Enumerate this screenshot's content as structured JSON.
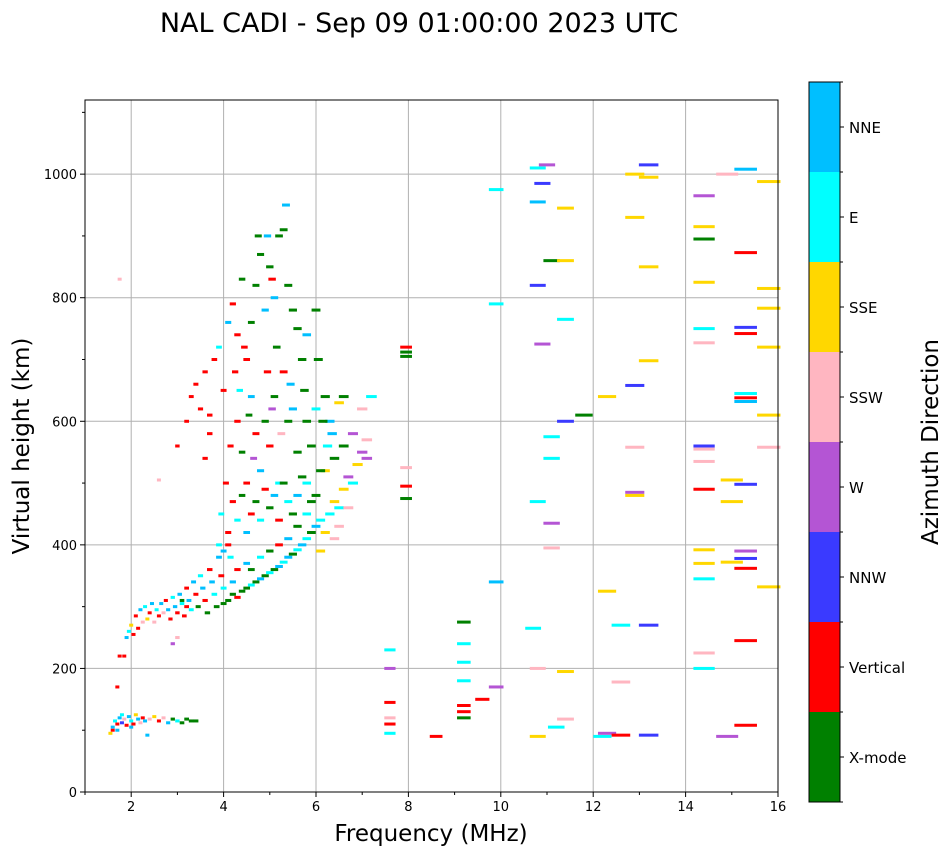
{
  "chart_data": {
    "type": "scatter",
    "title": "NAL CADI - Sep 09 01:00:00 2023 UTC",
    "xlabel": "Frequency (MHz)",
    "ylabel": "Virtual height (km)",
    "xlim": [
      1,
      16
    ],
    "ylim": [
      0,
      1120
    ],
    "xticks": [
      2,
      4,
      6,
      8,
      10,
      12,
      14,
      16
    ],
    "yticks": [
      0,
      200,
      400,
      600,
      800,
      1000
    ],
    "grid": true,
    "colorbar": {
      "label": "Azimuth Direction",
      "categories": [
        "X-mode",
        "Vertical",
        "NNW",
        "W",
        "SSW",
        "SSE",
        "E",
        "NNE"
      ],
      "colors": [
        "#008000",
        "#ff0000",
        "#3a3aff",
        "#b455d4",
        "#ffb6c1",
        "#ffd700",
        "#00ffff",
        "#00bfff"
      ]
    },
    "point_format": [
      "frequency_mhz",
      "virtual_height_km",
      "azimuth_index"
    ],
    "points": [
      [
        1.55,
        95,
        5
      ],
      [
        1.6,
        105,
        7
      ],
      [
        1.65,
        115,
        6
      ],
      [
        1.7,
        110,
        1
      ],
      [
        1.75,
        120,
        7
      ],
      [
        1.8,
        112,
        2
      ],
      [
        1.85,
        118,
        4
      ],
      [
        1.9,
        108,
        1
      ],
      [
        1.95,
        122,
        7
      ],
      [
        2.0,
        115,
        6
      ],
      [
        2.05,
        110,
        1
      ],
      [
        2.1,
        125,
        5
      ],
      [
        2.15,
        118,
        7
      ],
      [
        2.2,
        112,
        4
      ],
      [
        2.25,
        120,
        1
      ],
      [
        2.3,
        115,
        7
      ],
      [
        2.35,
        92,
        7
      ],
      [
        2.4,
        118,
        4
      ],
      [
        2.5,
        122,
        5
      ],
      [
        2.6,
        115,
        1
      ],
      [
        2.7,
        120,
        4
      ],
      [
        2.8,
        112,
        7
      ],
      [
        2.9,
        118,
        0
      ],
      [
        3.0,
        115,
        6
      ],
      [
        3.1,
        112,
        0
      ],
      [
        3.2,
        118,
        0
      ],
      [
        3.3,
        115,
        0
      ],
      [
        3.4,
        115,
        0
      ],
      [
        1.7,
        170,
        1
      ],
      [
        1.75,
        220,
        1
      ],
      [
        1.85,
        220,
        1
      ],
      [
        1.6,
        100,
        1
      ],
      [
        1.7,
        100,
        7
      ],
      [
        1.8,
        125,
        6
      ],
      [
        2.0,
        105,
        7
      ],
      [
        1.9,
        250,
        7
      ],
      [
        1.95,
        260,
        6
      ],
      [
        2.0,
        270,
        5
      ],
      [
        2.05,
        255,
        1
      ],
      [
        2.1,
        285,
        1
      ],
      [
        2.15,
        265,
        1
      ],
      [
        2.2,
        295,
        7
      ],
      [
        2.25,
        275,
        4
      ],
      [
        2.3,
        300,
        6
      ],
      [
        2.35,
        280,
        5
      ],
      [
        2.4,
        290,
        1
      ],
      [
        2.45,
        305,
        7
      ],
      [
        2.5,
        275,
        4
      ],
      [
        2.55,
        295,
        6
      ],
      [
        2.6,
        285,
        1
      ],
      [
        2.65,
        305,
        7
      ],
      [
        2.7,
        290,
        4
      ],
      [
        2.75,
        310,
        1
      ],
      [
        2.8,
        295,
        7
      ],
      [
        2.85,
        280,
        1
      ],
      [
        2.9,
        315,
        6
      ],
      [
        2.95,
        300,
        7
      ],
      [
        3.0,
        290,
        1
      ],
      [
        3.05,
        320,
        7
      ],
      [
        3.1,
        305,
        6
      ],
      [
        3.15,
        285,
        1
      ],
      [
        3.2,
        330,
        1
      ],
      [
        3.25,
        310,
        7
      ],
      [
        3.3,
        295,
        6
      ],
      [
        3.35,
        340,
        7
      ],
      [
        3.4,
        320,
        1
      ],
      [
        3.45,
        300,
        0
      ],
      [
        3.5,
        350,
        6
      ],
      [
        3.55,
        330,
        7
      ],
      [
        3.6,
        310,
        1
      ],
      [
        3.65,
        290,
        0
      ],
      [
        3.7,
        360,
        1
      ],
      [
        3.75,
        340,
        7
      ],
      [
        3.8,
        320,
        6
      ],
      [
        3.85,
        300,
        0
      ],
      [
        3.9,
        380,
        7
      ],
      [
        3.95,
        350,
        1
      ],
      [
        4.0,
        330,
        6
      ],
      [
        4.0,
        305,
        0
      ],
      [
        2.9,
        240,
        3
      ],
      [
        3.0,
        250,
        4
      ],
      [
        2.6,
        505,
        4
      ],
      [
        1.75,
        830,
        4
      ],
      [
        3.1,
        310,
        0
      ],
      [
        3.2,
        300,
        1
      ],
      [
        4.1,
        310,
        0
      ],
      [
        4.2,
        320,
        0
      ],
      [
        4.3,
        315,
        1
      ],
      [
        4.4,
        325,
        0
      ],
      [
        4.5,
        330,
        0
      ],
      [
        4.6,
        335,
        6
      ],
      [
        4.7,
        340,
        0
      ],
      [
        4.8,
        345,
        7
      ],
      [
        4.9,
        350,
        0
      ],
      [
        5.0,
        355,
        6
      ],
      [
        5.1,
        360,
        0
      ],
      [
        5.2,
        365,
        7
      ],
      [
        5.3,
        372,
        6
      ],
      [
        5.4,
        380,
        7
      ],
      [
        5.5,
        385,
        0
      ],
      [
        5.6,
        392,
        6
      ],
      [
        5.7,
        400,
        7
      ],
      [
        5.8,
        410,
        6
      ],
      [
        5.9,
        420,
        0
      ],
      [
        6.0,
        430,
        7
      ],
      [
        6.1,
        440,
        6
      ],
      [
        4.2,
        340,
        7
      ],
      [
        4.3,
        360,
        1
      ],
      [
        4.5,
        370,
        7
      ],
      [
        4.6,
        360,
        0
      ],
      [
        4.8,
        380,
        6
      ],
      [
        5.0,
        390,
        0
      ],
      [
        5.2,
        400,
        1
      ],
      [
        5.4,
        410,
        7
      ],
      [
        5.6,
        430,
        0
      ],
      [
        5.8,
        450,
        6
      ],
      [
        6.0,
        480,
        0
      ],
      [
        4.1,
        400,
        1
      ],
      [
        4.15,
        380,
        6
      ],
      [
        4.0,
        390,
        7
      ],
      [
        3.9,
        400,
        6
      ],
      [
        6.2,
        420,
        5
      ],
      [
        6.3,
        450,
        6
      ],
      [
        6.4,
        470,
        5
      ],
      [
        6.5,
        460,
        6
      ],
      [
        6.5,
        430,
        4
      ],
      [
        6.6,
        490,
        5
      ],
      [
        6.7,
        510,
        3
      ],
      [
        6.8,
        500,
        6
      ],
      [
        6.9,
        530,
        5
      ],
      [
        7.0,
        550,
        3
      ],
      [
        7.1,
        570,
        4
      ],
      [
        7.1,
        540,
        3
      ],
      [
        7.2,
        640,
        6
      ],
      [
        6.8,
        580,
        3
      ],
      [
        6.6,
        560,
        0
      ],
      [
        6.4,
        540,
        0
      ],
      [
        6.3,
        600,
        7
      ],
      [
        6.5,
        630,
        5
      ],
      [
        6.6,
        640,
        0
      ],
      [
        7.0,
        620,
        4
      ],
      [
        6.2,
        520,
        5
      ],
      [
        6.4,
        410,
        4
      ],
      [
        6.1,
        390,
        5
      ],
      [
        6.7,
        460,
        4
      ],
      [
        3.2,
        600,
        1
      ],
      [
        3.3,
        640,
        1
      ],
      [
        3.4,
        660,
        1
      ],
      [
        3.5,
        620,
        1
      ],
      [
        3.6,
        680,
        1
      ],
      [
        3.7,
        610,
        1
      ],
      [
        3.8,
        700,
        1
      ],
      [
        3.9,
        720,
        6
      ],
      [
        4.0,
        650,
        1
      ],
      [
        4.1,
        760,
        7
      ],
      [
        4.2,
        790,
        1
      ],
      [
        4.3,
        740,
        1
      ],
      [
        4.4,
        830,
        0
      ],
      [
        4.5,
        700,
        1
      ],
      [
        4.6,
        760,
        0
      ],
      [
        4.7,
        820,
        0
      ],
      [
        4.8,
        870,
        0
      ],
      [
        4.9,
        780,
        7
      ],
      [
        5.0,
        850,
        0
      ],
      [
        5.1,
        800,
        7
      ],
      [
        5.2,
        900,
        0
      ],
      [
        5.3,
        910,
        0
      ],
      [
        5.35,
        950,
        7
      ],
      [
        5.4,
        820,
        0
      ],
      [
        5.5,
        780,
        0
      ],
      [
        5.6,
        750,
        0
      ],
      [
        5.8,
        740,
        7
      ],
      [
        6.0,
        780,
        0
      ],
      [
        4.3,
        600,
        1
      ],
      [
        4.4,
        550,
        0
      ],
      [
        4.5,
        500,
        1
      ],
      [
        4.6,
        640,
        7
      ],
      [
        4.7,
        580,
        1
      ],
      [
        4.8,
        520,
        7
      ],
      [
        4.9,
        600,
        0
      ],
      [
        5.0,
        560,
        1
      ],
      [
        5.1,
        640,
        0
      ],
      [
        5.2,
        500,
        6
      ],
      [
        5.3,
        680,
        1
      ],
      [
        5.4,
        600,
        0
      ],
      [
        5.5,
        620,
        7
      ],
      [
        5.6,
        550,
        0
      ],
      [
        5.7,
        700,
        0
      ],
      [
        5.8,
        600,
        0
      ],
      [
        5.9,
        560,
        0
      ],
      [
        6.0,
        620,
        6
      ],
      [
        6.1,
        520,
        0
      ],
      [
        6.2,
        640,
        0
      ],
      [
        4.2,
        470,
        1
      ],
      [
        4.3,
        440,
        6
      ],
      [
        4.4,
        480,
        0
      ],
      [
        4.5,
        420,
        7
      ],
      [
        4.6,
        450,
        1
      ],
      [
        4.7,
        470,
        0
      ],
      [
        4.8,
        440,
        6
      ],
      [
        4.9,
        490,
        1
      ],
      [
        5.0,
        460,
        0
      ],
      [
        5.1,
        480,
        7
      ],
      [
        5.2,
        440,
        1
      ],
      [
        5.3,
        500,
        0
      ],
      [
        5.4,
        470,
        6
      ],
      [
        5.5,
        450,
        0
      ],
      [
        5.6,
        480,
        7
      ],
      [
        5.7,
        510,
        0
      ],
      [
        5.8,
        500,
        6
      ],
      [
        5.9,
        470,
        0
      ],
      [
        4.25,
        680,
        1
      ],
      [
        4.35,
        650,
        6
      ],
      [
        4.45,
        720,
        1
      ],
      [
        4.55,
        610,
        0
      ],
      [
        4.95,
        680,
        1
      ],
      [
        5.15,
        720,
        0
      ],
      [
        5.45,
        660,
        7
      ],
      [
        5.75,
        650,
        0
      ],
      [
        6.05,
        700,
        0
      ],
      [
        4.15,
        560,
        1
      ],
      [
        4.05,
        500,
        1
      ],
      [
        3.95,
        450,
        6
      ],
      [
        4.1,
        420,
        1
      ],
      [
        4.65,
        540,
        3
      ],
      [
        5.25,
        580,
        4
      ],
      [
        5.05,
        620,
        3
      ],
      [
        6.25,
        560,
        6
      ],
      [
        6.15,
        600,
        0
      ],
      [
        6.35,
        580,
        7
      ],
      [
        3.0,
        560,
        1
      ],
      [
        3.6,
        540,
        1
      ],
      [
        3.7,
        580,
        1
      ],
      [
        4.75,
        900,
        0
      ],
      [
        5.05,
        830,
        1
      ],
      [
        4.95,
        900,
        7
      ],
      [
        7.95,
        720,
        1
      ],
      [
        7.95,
        712,
        0
      ],
      [
        7.95,
        705,
        0
      ],
      [
        7.95,
        525,
        4
      ],
      [
        7.95,
        495,
        1
      ],
      [
        7.95,
        475,
        0
      ],
      [
        7.6,
        230,
        6
      ],
      [
        7.6,
        200,
        3
      ],
      [
        7.6,
        145,
        1
      ],
      [
        7.6,
        120,
        4
      ],
      [
        7.6,
        110,
        1
      ],
      [
        7.6,
        95,
        6
      ],
      [
        8.6,
        90,
        1
      ],
      [
        9.2,
        275,
        0
      ],
      [
        9.2,
        240,
        6
      ],
      [
        9.2,
        210,
        6
      ],
      [
        9.2,
        180,
        6
      ],
      [
        9.2,
        140,
        1
      ],
      [
        9.2,
        130,
        1
      ],
      [
        9.2,
        120,
        0
      ],
      [
        9.6,
        150,
        1
      ],
      [
        9.9,
        975,
        6
      ],
      [
        9.9,
        790,
        6
      ],
      [
        9.9,
        340,
        7
      ],
      [
        9.9,
        170,
        3
      ],
      [
        10.7,
        265,
        6
      ],
      [
        10.8,
        1010,
        6
      ],
      [
        10.8,
        955,
        7
      ],
      [
        10.8,
        820,
        2
      ],
      [
        10.8,
        470,
        6
      ],
      [
        10.8,
        200,
        4
      ],
      [
        10.8,
        90,
        5
      ],
      [
        10.9,
        985,
        2
      ],
      [
        10.9,
        725,
        3
      ],
      [
        11.0,
        1015,
        3
      ],
      [
        11.1,
        860,
        0
      ],
      [
        11.1,
        575,
        6
      ],
      [
        11.1,
        540,
        6
      ],
      [
        11.1,
        435,
        3
      ],
      [
        11.1,
        395,
        4
      ],
      [
        11.2,
        105,
        6
      ],
      [
        11.4,
        945,
        5
      ],
      [
        11.4,
        860,
        5
      ],
      [
        11.4,
        765,
        6
      ],
      [
        11.4,
        600,
        2
      ],
      [
        11.4,
        195,
        5
      ],
      [
        11.4,
        118,
        4
      ],
      [
        11.8,
        610,
        0
      ],
      [
        12.2,
        90,
        6
      ],
      [
        12.3,
        640,
        5
      ],
      [
        12.3,
        325,
        5
      ],
      [
        12.3,
        95,
        3
      ],
      [
        12.6,
        270,
        6
      ],
      [
        12.6,
        178,
        4
      ],
      [
        12.6,
        92,
        1
      ],
      [
        12.9,
        1000,
        5
      ],
      [
        12.9,
        930,
        5
      ],
      [
        12.9,
        658,
        2
      ],
      [
        12.9,
        485,
        3
      ],
      [
        12.9,
        480,
        5
      ],
      [
        12.9,
        558,
        4
      ],
      [
        13.2,
        1015,
        2
      ],
      [
        13.2,
        995,
        5
      ],
      [
        13.2,
        850,
        5
      ],
      [
        13.2,
        698,
        5
      ],
      [
        13.2,
        270,
        2
      ],
      [
        13.2,
        92,
        2
      ],
      [
        14.4,
        965,
        3
      ],
      [
        14.4,
        915,
        5
      ],
      [
        14.4,
        895,
        0
      ],
      [
        14.4,
        825,
        5
      ],
      [
        14.4,
        750,
        6
      ],
      [
        14.4,
        727,
        4
      ],
      [
        14.4,
        560,
        2
      ],
      [
        14.4,
        555,
        4
      ],
      [
        14.4,
        535,
        4
      ],
      [
        14.4,
        490,
        1
      ],
      [
        14.4,
        392,
        5
      ],
      [
        14.4,
        370,
        5
      ],
      [
        14.4,
        345,
        6
      ],
      [
        14.4,
        225,
        4
      ],
      [
        14.4,
        200,
        6
      ],
      [
        14.9,
        1000,
        4
      ],
      [
        15.0,
        505,
        5
      ],
      [
        15.0,
        470,
        5
      ],
      [
        15.0,
        372,
        5
      ],
      [
        14.9,
        90,
        3
      ],
      [
        15.3,
        1008,
        7
      ],
      [
        15.3,
        873,
        1
      ],
      [
        15.3,
        752,
        2
      ],
      [
        15.3,
        742,
        1
      ],
      [
        15.3,
        645,
        6
      ],
      [
        15.3,
        638,
        1
      ],
      [
        15.3,
        632,
        7
      ],
      [
        15.3,
        498,
        2
      ],
      [
        15.3,
        390,
        3
      ],
      [
        15.3,
        378,
        2
      ],
      [
        15.3,
        362,
        1
      ],
      [
        15.3,
        245,
        1
      ],
      [
        15.3,
        108,
        1
      ],
      [
        15.8,
        988,
        5
      ],
      [
        15.8,
        815,
        5
      ],
      [
        15.8,
        783,
        5
      ],
      [
        15.8,
        720,
        5
      ],
      [
        15.8,
        610,
        5
      ],
      [
        15.8,
        558,
        4
      ],
      [
        15.8,
        332,
        5
      ]
    ]
  }
}
